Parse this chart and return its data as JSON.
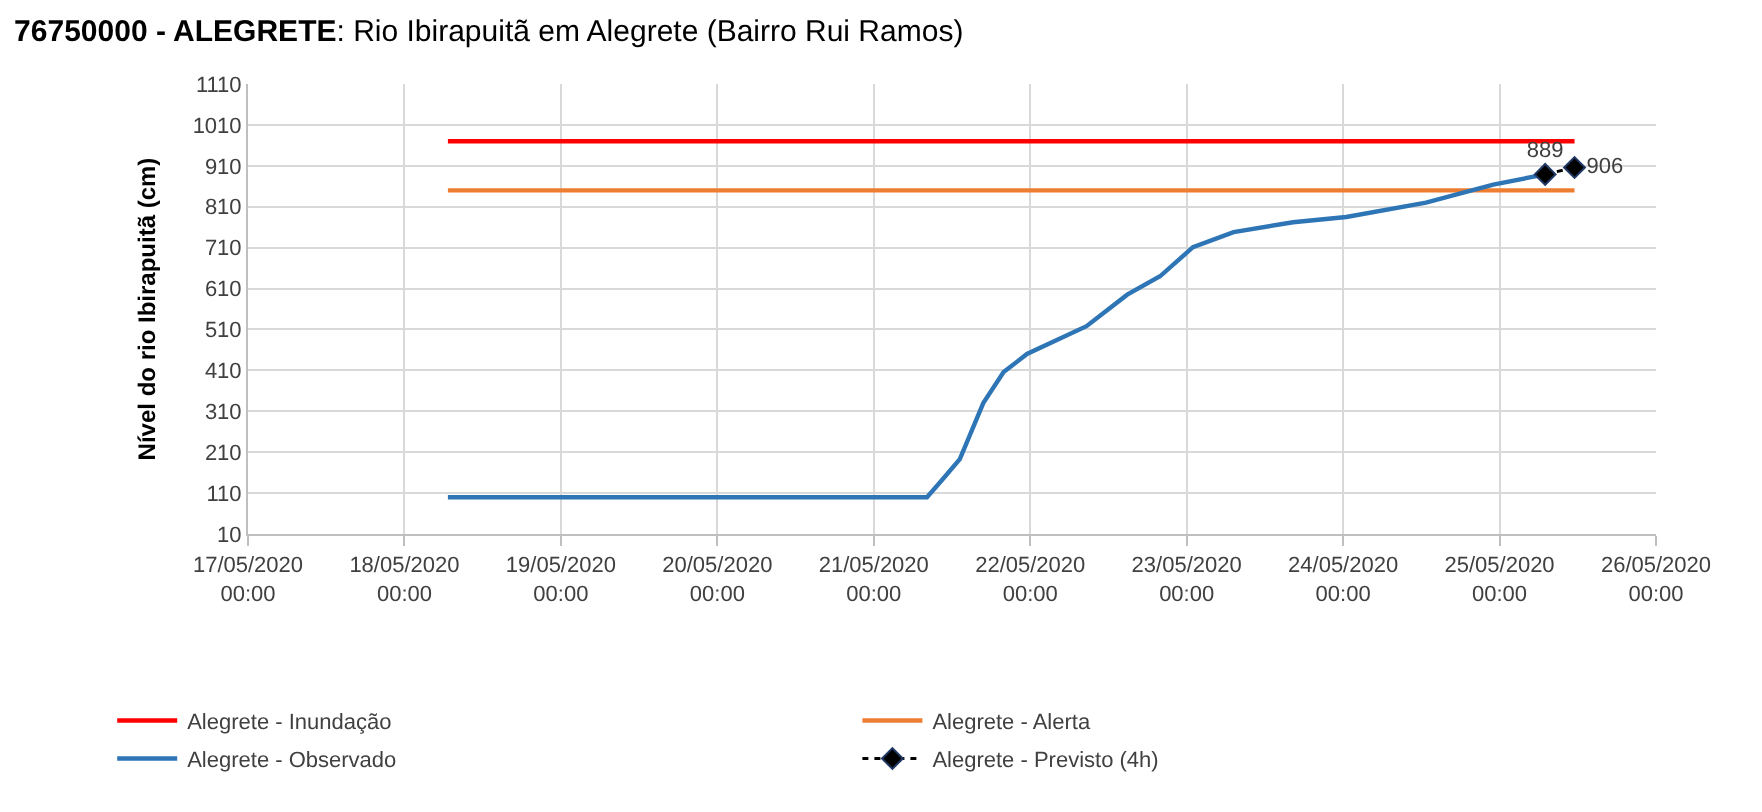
{
  "chart_data": {
    "type": "line",
    "title": "76750000 - ALEGRETE: Rio Ibirapuitã em Alegrete (Bairro Rui Ramos)",
    "ylabel": "Nível do rio Ibirapuitã (cm)",
    "xlim": [
      "2020-05-17T00:00",
      "2020-05-26T00:00"
    ],
    "xticks": [
      {
        "value": "2020-05-17T00:00",
        "label": "17/05/2020 00:00"
      },
      {
        "value": "2020-05-18T00:00",
        "label": "18/05/2020 00:00"
      },
      {
        "value": "2020-05-19T00:00",
        "label": "19/05/2020 00:00"
      },
      {
        "value": "2020-05-20T00:00",
        "label": "20/05/2020 00:00"
      },
      {
        "value": "2020-05-21T00:00",
        "label": "21/05/2020 00:00"
      },
      {
        "value": "2020-05-22T00:00",
        "label": "22/05/2020 00:00"
      },
      {
        "value": "2020-05-23T00:00",
        "label": "23/05/2020 00:00"
      },
      {
        "value": "2020-05-24T00:00",
        "label": "24/05/2020 00:00"
      },
      {
        "value": "2020-05-25T00:00",
        "label": "25/05/2020 00:00"
      },
      {
        "value": "2020-05-26T00:00",
        "label": "26/05/2020 00:00"
      }
    ],
    "ylim": [
      10,
      1110
    ],
    "yticks": [
      10,
      110,
      210,
      310,
      410,
      510,
      610,
      710,
      810,
      910,
      1010,
      1110
    ],
    "grid": true,
    "legend": "bottom",
    "series": [
      {
        "name": "Alegrete - Inundação",
        "color": "#ff0000",
        "line_style": "solid",
        "x": [
          "2020-05-18T06:40",
          "2020-05-25T11:30"
        ],
        "values": [
          970,
          970
        ]
      },
      {
        "name": "Alegrete - Alerta",
        "color": "#ed7d31",
        "line_style": "solid",
        "x": [
          "2020-05-18T06:40",
          "2020-05-25T11:30"
        ],
        "values": [
          850,
          850
        ]
      },
      {
        "name": "Alegrete - Observado",
        "color": "#2e75b6",
        "line_style": "solid",
        "x": [
          "2020-05-18T06:40",
          "2020-05-21T08:10",
          "2020-05-21T10:48",
          "2020-05-21T13:12",
          "2020-05-21T16:48",
          "2020-05-21T19:55",
          "2020-05-21T23:30",
          "2020-05-22T08:38",
          "2020-05-22T14:53",
          "2020-05-22T19:55",
          "2020-05-23T00:58",
          "2020-05-23T07:12",
          "2020-05-23T16:19",
          "2020-05-24T00:29",
          "2020-05-24T12:43",
          "2020-05-24T23:02",
          "2020-05-25T07:00"
        ],
        "values": [
          100,
          100,
          148,
          193,
          330,
          406,
          450,
          518,
          595,
          640,
          711,
          748,
          772,
          785,
          820,
          864,
          889
        ]
      },
      {
        "name": "Alegrete - Previsto (4h)",
        "color": "#000000",
        "line_style": "dotted",
        "marker": "diamond",
        "x": [
          "2020-05-25T07:00",
          "2020-05-25T11:30"
        ],
        "values": [
          889,
          906
        ],
        "value_labels": [
          "889",
          "906"
        ]
      }
    ]
  }
}
